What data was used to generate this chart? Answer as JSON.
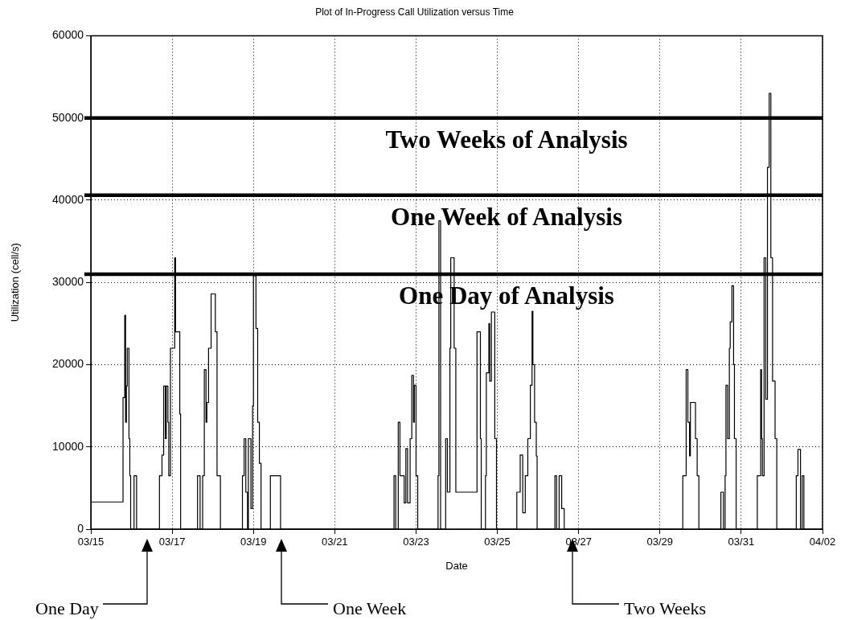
{
  "chart_data": {
    "type": "step",
    "title": "Plot of In-Progress Call Utilization versus Time",
    "xlabel": "Date",
    "ylabel": "Utilization (cell/s)",
    "xlim": [
      "--03-15",
      "--04-02"
    ],
    "xticks": [
      {
        "value": "--03-15",
        "label": "03/15"
      },
      {
        "value": "--03-17",
        "label": "03/17"
      },
      {
        "value": "--03-19",
        "label": "03/19"
      },
      {
        "value": "--03-21",
        "label": "03/21"
      },
      {
        "value": "--03-23",
        "label": "03/23"
      },
      {
        "value": "--03-25",
        "label": "03/25"
      },
      {
        "value": "--03-27",
        "label": "03/27"
      },
      {
        "value": "--03-29",
        "label": "03/29"
      },
      {
        "value": "--03-31",
        "label": "03/31"
      },
      {
        "value": "--04-02",
        "label": "04/02"
      }
    ],
    "ylim": [
      0,
      60000
    ],
    "yticks": [
      0,
      10000,
      20000,
      30000,
      40000,
      50000,
      60000
    ],
    "grid": true,
    "line_style": "solid",
    "marker": "none",
    "series": [
      {
        "color": "#000000",
        "x": [
          "--03-15T00:00",
          "--03-15T19:00",
          "--03-15T20:00",
          "--03-15T20:30",
          "--03-15T21:00",
          "--03-15T21:30",
          "--03-15T22:30",
          "--03-15T23:00",
          "--03-15T23:30",
          "--03-16T01:30",
          "--03-16T03:00",
          "--03-16T16:30",
          "--03-16T18:00",
          "--03-16T19:00",
          "--03-16T20:00",
          "--03-16T20:30",
          "--03-16T21:30",
          "--03-16T22:00",
          "--03-16T23:00",
          "--03-17T01:30",
          "--03-17T02:00",
          "--03-17T04:30",
          "--03-17T05:00",
          "--03-17T15:00",
          "--03-17T16:30",
          "--03-17T18:00",
          "--03-17T19:00",
          "--03-17T20:00",
          "--03-17T20:30",
          "--03-17T21:30",
          "--03-17T23:00",
          "--03-18T01:30",
          "--03-18T02:30",
          "--03-18T04:30",
          "--03-18T17:30",
          "--03-18T18:30",
          "--03-18T19:30",
          "--03-18T20:30",
          "--03-18T21:00",
          "--03-18T22:30",
          "--03-18T23:30",
          "--03-19T00:00",
          "--03-19T01:30",
          "--03-19T02:30",
          "--03-19T03:30",
          "--03-19T04:30",
          "--03-19T10:00",
          "--03-19T16:00",
          "--03-22T11:00",
          "--03-22T12:00",
          "--03-22T13:30",
          "--03-22T14:30",
          "--03-22T17:00",
          "--03-22T18:00",
          "--03-22T19:00",
          "--03-22T20:30",
          "--03-22T21:30",
          "--03-22T22:30",
          "--03-22T23:00",
          "--03-23T00:00",
          "--03-23T01:00",
          "--03-23T13:00",
          "--03-23T13:30",
          "--03-23T14:30",
          "--03-23T17:30",
          "--03-23T18:30",
          "--03-23T20:00",
          "--03-23T20:30",
          "--03-23T22:30",
          "--03-23T23:30",
          "--03-24T12:00",
          "--03-24T14:00",
          "--03-24T14:30",
          "--03-24T17:00",
          "--03-24T17:30",
          "--03-24T19:00",
          "--03-24T19:30",
          "--03-24T20:30",
          "--03-24T22:30",
          "--03-24T23:30",
          "--03-25T11:30",
          "--03-25T13:30",
          "--03-25T15:00",
          "--03-25T16:30",
          "--03-25T18:00",
          "--03-25T19:30",
          "--03-25T20:30",
          "--03-25T21:00",
          "--03-25T22:00",
          "--03-25T23:00",
          "--03-25T23:30",
          "--03-26T10:00",
          "--03-26T11:00",
          "--03-26T12:30",
          "--03-26T14:00",
          "--03-26T15:30",
          "--03-29T13:30",
          "--03-29T15:30",
          "--03-29T16:30",
          "--03-29T17:30",
          "--03-29T18:00",
          "--03-29T21:00",
          "--03-29T22:00",
          "--03-29T23:00",
          "--03-30T12:00",
          "--03-30T13:30",
          "--03-30T14:30",
          "--03-30T15:00",
          "--03-30T16:00",
          "--03-30T17:00",
          "--03-30T17:30",
          "--03-30T18:30",
          "--03-30T19:30",
          "--03-30T20:00",
          "--03-30T21:00",
          "--03-31T09:30",
          "--03-31T11:30",
          "--03-31T12:00",
          "--03-31T12:30",
          "--03-31T13:30",
          "--03-31T14:30",
          "--03-31T15:30",
          "--03-31T16:30",
          "--03-31T17:30",
          "--03-31T18:30",
          "--03-31T20:00",
          "--03-31T21:00",
          "--04-01T08:30",
          "--04-01T09:30",
          "--04-01T11:00",
          "--04-01T12:00",
          "--04-01T13:00",
          "--04-02T00:00"
        ],
        "values": [
          3300,
          16000,
          26000,
          13000,
          17400,
          22000,
          11000,
          6500,
          0,
          6500,
          0,
          6500,
          9000,
          17400,
          11000,
          17400,
          13000,
          6500,
          22000,
          33000,
          24000,
          14000,
          0,
          6500,
          0,
          6500,
          19400,
          13000,
          15400,
          22000,
          28600,
          24000,
          6500,
          0,
          6500,
          11000,
          4500,
          0,
          11000,
          2500,
          15000,
          30800,
          24400,
          13000,
          8000,
          0,
          6500,
          0,
          6500,
          0,
          13000,
          6500,
          3200,
          9800,
          3200,
          11000,
          18700,
          13000,
          17500,
          6500,
          0,
          6500,
          37500,
          0,
          11000,
          4500,
          22000,
          33000,
          22000,
          4500,
          24000,
          11000,
          0,
          6500,
          19000,
          25000,
          18000,
          26400,
          11000,
          0,
          4500,
          9000,
          2000,
          6500,
          11000,
          17500,
          26500,
          20000,
          13000,
          8900,
          0,
          6500,
          0,
          6500,
          2500,
          0,
          6500,
          19400,
          13000,
          8900,
          15400,
          11000,
          6500,
          0,
          4500,
          0,
          6500,
          17500,
          11000,
          22000,
          25200,
          29600,
          20000,
          11000,
          0,
          6500,
          19400,
          11000,
          6500,
          33000,
          15800,
          44000,
          53000,
          33000,
          18000,
          11000,
          0,
          6500,
          9700,
          0,
          6500,
          0,
          0
        ]
      }
    ],
    "ref_lines": [
      {
        "axis": "y",
        "value": 50000,
        "label": "Two Weeks of Analysis",
        "color": "#000000"
      },
      {
        "axis": "y",
        "value": 40600,
        "label": "One Week of Analysis",
        "color": "#000000"
      },
      {
        "axis": "y",
        "value": 31000,
        "label": "One Day of Analysis",
        "color": "#000000"
      }
    ],
    "annotations": [
      "One Day",
      "One Week",
      "Two Weeks"
    ]
  }
}
